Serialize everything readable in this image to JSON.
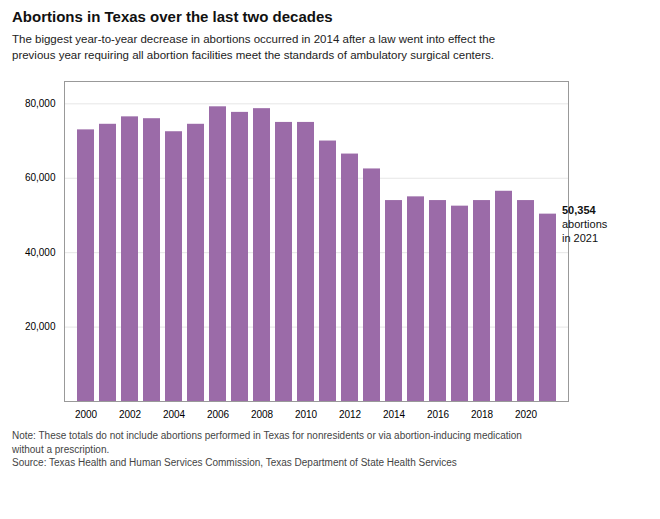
{
  "chart_data": {
    "type": "bar",
    "title": "Abortions in Texas over the last two decades",
    "subtitle": "The biggest year-to-year decrease in abortions occurred in 2014 after a law went into effect the\nprevious year requiring all abortion facilities meet the standards of ambulatory surgical centers.",
    "categories": [
      "2000",
      null,
      "2002",
      null,
      "2004",
      null,
      "2006",
      null,
      "2008",
      null,
      "2010",
      null,
      "2012",
      null,
      "2014",
      null,
      "2016",
      null,
      "2018",
      null,
      "2020",
      null
    ],
    "values": [
      73000,
      74500,
      76500,
      76000,
      72500,
      74500,
      79200,
      77700,
      78700,
      75000,
      75000,
      70000,
      66500,
      62500,
      54000,
      55000,
      54000,
      52500,
      54000,
      56500,
      54000,
      50354
    ],
    "color": "#9b6ba8",
    "ylim": [
      0,
      86000
    ],
    "yticks": [
      {
        "value": 20000,
        "label": "20,000"
      },
      {
        "value": 40000,
        "label": "40,000"
      },
      {
        "value": 60000,
        "label": "60,000"
      },
      {
        "value": 80000,
        "label": "80,000"
      }
    ],
    "grid": true,
    "annotations": [
      "50,354",
      "abortions",
      "in 2021"
    ],
    "notes": [
      "Note: These totals do not include abortions performed in Texas for nonresidents or via abortion-inducing medication",
      "without a prescription.",
      "Source: Texas Health and Human Services Commission, Texas Department of State Health Services"
    ]
  }
}
